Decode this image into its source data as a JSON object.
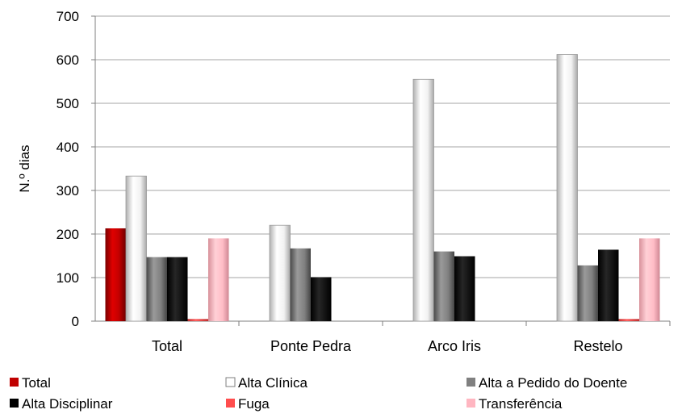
{
  "chart_data": {
    "type": "bar",
    "categories": [
      "Total",
      "Ponte Pedra",
      "Arco Iris",
      "Restelo"
    ],
    "ylabel": "N.º dias",
    "xlabel": "",
    "ylim": [
      0,
      700
    ],
    "yticks": [
      0,
      100,
      200,
      300,
      400,
      500,
      600,
      700
    ],
    "grid": true,
    "legend_position": "bottom",
    "series": [
      {
        "name": "Total",
        "color": "#c00000",
        "style": "gradient-red",
        "values": [
          213,
          0,
          0,
          0
        ]
      },
      {
        "name": "Alta Clínica",
        "color": "#ffffff",
        "style": "gradient-white",
        "values": [
          333,
          220,
          555,
          612
        ]
      },
      {
        "name": "Alta a Pedido do Doente",
        "color": "#808080",
        "style": "gradient-gray",
        "values": [
          147,
          167,
          160,
          128
        ]
      },
      {
        "name": "Alta Disciplinar",
        "color": "#000000",
        "style": "gradient-black",
        "values": [
          147,
          101,
          149,
          164
        ]
      },
      {
        "name": "Fuga",
        "color": "#ff4d4d",
        "style": "gradient-lightred",
        "values": [
          5,
          0,
          0,
          5
        ]
      },
      {
        "name": "Transferência",
        "color": "#ffb6c1",
        "style": "gradient-pink",
        "values": [
          190,
          0,
          0,
          190
        ]
      }
    ]
  }
}
